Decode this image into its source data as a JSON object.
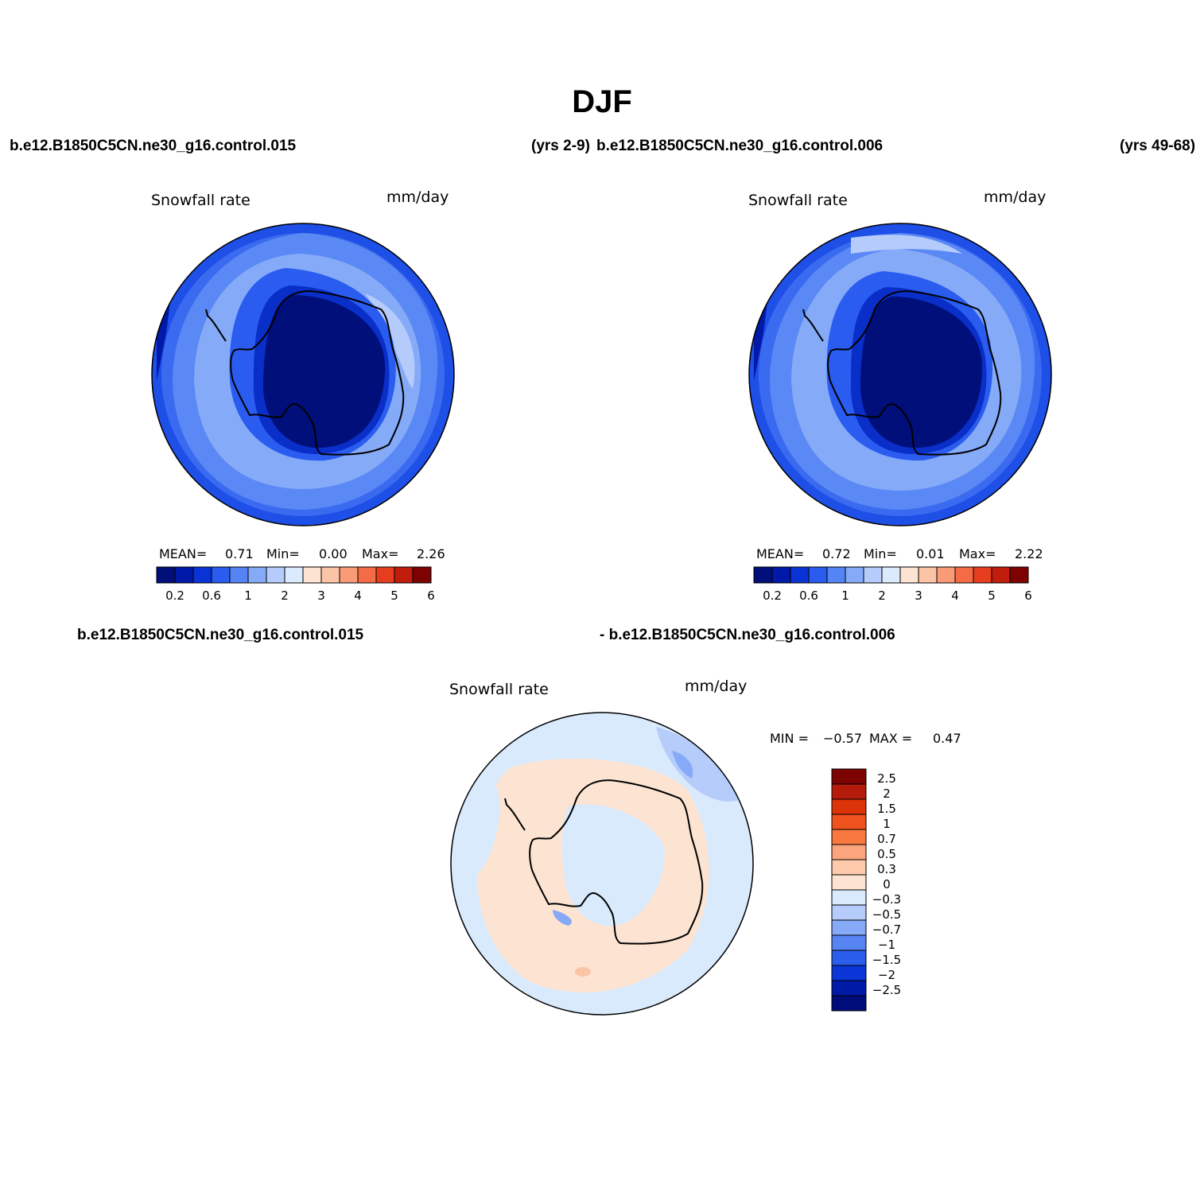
{
  "title": "DJF",
  "header": {
    "case_a": "b.e12.B1850C5CN.ne30_g16.control.015",
    "years_a": "(yrs 2-9)",
    "case_b": "b.e12.B1850C5CN.ne30_g16.control.006",
    "years_b": "(yrs 49-68)"
  },
  "diff_header": {
    "case_a": "b.e12.B1850C5CN.ne30_g16.control.015",
    "case_b": "- b.e12.B1850C5CN.ne30_g16.control.006"
  },
  "panels": [
    {
      "variable": "Snowfall rate",
      "units": "mm/day",
      "mean_label": "MEAN=",
      "mean": "0.71",
      "min_label": "Min=",
      "min": "0.00",
      "max_label": "Max=",
      "max": "2.26"
    },
    {
      "variable": "Snowfall rate",
      "units": "mm/day",
      "mean_label": "MEAN=",
      "mean": "0.72",
      "min_label": "Min=",
      "min": "0.01",
      "max_label": "Max=",
      "max": "2.22"
    }
  ],
  "diff_panel": {
    "variable": "Snowfall rate",
    "units": "mm/day",
    "min_label": "MIN =",
    "min": "−0.57",
    "max_label": "MAX =",
    "max": "0.47"
  },
  "colorbar_main": {
    "colors": [
      "#000f7a",
      "#0019a8",
      "#0a33d6",
      "#2a5cf0",
      "#5585f5",
      "#85aaf8",
      "#b5cbfb",
      "#dceafd",
      "#fde4d2",
      "#fcc4a6",
      "#f89b76",
      "#f46b45",
      "#e63d1e",
      "#c01d0c",
      "#7d0303"
    ],
    "ticks": [
      "0.2",
      "0.6",
      "1",
      "2",
      "3",
      "4",
      "5",
      "6"
    ]
  },
  "colorbar_diff": {
    "colors": [
      "#7d0303",
      "#b51b0a",
      "#dc3308",
      "#f0521e",
      "#f8783f",
      "#fba57c",
      "#fdcaac",
      "#fde4d2",
      "#d9eafd",
      "#b6cdfb",
      "#86aaf8",
      "#5784f3",
      "#2b5ded",
      "#0a35d7",
      "#001aa8",
      "#000c7a"
    ],
    "ticks": [
      "2.5",
      "2",
      "1.5",
      "1",
      "0.7",
      "0.5",
      "0.3",
      "0",
      "−0.3",
      "−0.5",
      "−0.7",
      "−1",
      "−1.5",
      "−2",
      "−2.5"
    ]
  }
}
